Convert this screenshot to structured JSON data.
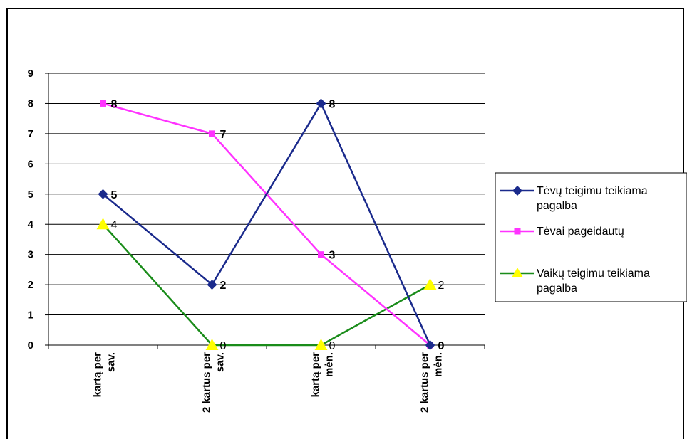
{
  "chart_data": {
    "type": "line",
    "categories": [
      "kartą per\nsav.",
      "2 kartus per\nsav.",
      "kartą per\nmėn.",
      "2 kartus per\nmėn."
    ],
    "ylim": [
      0,
      9
    ],
    "yticks": [
      "0",
      "1",
      "2",
      "3",
      "4",
      "5",
      "6",
      "7",
      "8",
      "9"
    ],
    "grid": true,
    "legend_position": "right",
    "series": [
      {
        "name": "Tėvų teigimu teikiama pagalba",
        "values": [
          5,
          2,
          8,
          0
        ],
        "color": "#1a2a8c",
        "marker": "diamond",
        "label_bold": true
      },
      {
        "name": "Tėvai pageidautų",
        "values": [
          8,
          7,
          3,
          0
        ],
        "color": "#ff33ff",
        "marker": "square",
        "label_bold": true
      },
      {
        "name": "Vaikų teigimu teikiama pagalba",
        "values": [
          4,
          0,
          0,
          2
        ],
        "color": "#1a8c1a",
        "marker": "triangle",
        "marker_color": "#ffff00",
        "label_bold": false
      }
    ],
    "legend_lines": [
      [
        "Tėvų teigimu teikiama",
        "pagalba"
      ],
      [
        "Tėvai pageidautų"
      ],
      [
        "Vaikų teigimu teikiama",
        "pagalba"
      ]
    ]
  }
}
